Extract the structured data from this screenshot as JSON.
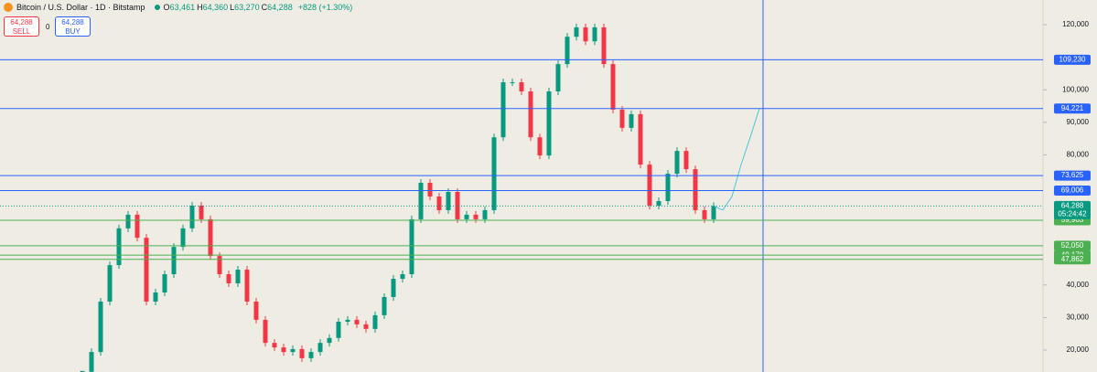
{
  "chart_data": {
    "type": "candlestick",
    "title": "Bitcoin / U.S. Dollar · 1D · Bitstamp",
    "ohlc": [
      {
        "label": "O",
        "value": "63,461"
      },
      {
        "label": "H",
        "value": "64,360"
      },
      {
        "label": "L",
        "value": "63,270"
      },
      {
        "label": "C",
        "value": "64,288"
      }
    ],
    "change": "+828 (+1.30%)",
    "sell": {
      "price": "64,288",
      "label": "SELL",
      "color": "#f23645"
    },
    "spread": "0",
    "buy": {
      "price": "64,288",
      "label": "BUY",
      "color": "#2962ff"
    },
    "up_color": "#089981",
    "down_color": "#f23645",
    "values": [
      13300,
      19400,
      34900,
      46100,
      57400,
      61600,
      54500,
      34900,
      37700,
      43300,
      51700,
      57400,
      64400,
      60200,
      48900,
      43300,
      40500,
      44700,
      34900,
      29300,
      22200,
      20800,
      19400,
      20300,
      17500,
      19400,
      22200,
      23700,
      28700,
      29300,
      27900,
      26500,
      30700,
      36300,
      41900,
      43300,
      60200,
      71400,
      67200,
      63000,
      68600,
      60200,
      61600,
      60200,
      63000,
      85400,
      102300,
      102300,
      99500,
      85400,
      79800,
      99500,
      107900,
      116300,
      119200,
      114900,
      119200,
      107900,
      93900,
      88300,
      92500,
      77000,
      64400,
      65800,
      74200,
      81200,
      75600,
      63000,
      60200,
      64288
    ],
    "projection": {
      "color": "#4fc3e0",
      "values": [
        64288,
        63000,
        67200,
        77000,
        85400,
        94221
      ]
    },
    "ylim": [
      13250,
      127600
    ],
    "yticks": [
      {
        "value": 20000,
        "label": "20,000"
      },
      {
        "value": 30000,
        "label": "30,000"
      },
      {
        "value": 40000,
        "label": "40,000"
      },
      {
        "value": 80000,
        "label": "80,000"
      },
      {
        "value": 90000,
        "label": "90,000"
      },
      {
        "value": 100000,
        "label": "100,000"
      },
      {
        "value": 120000,
        "label": "120,000"
      }
    ],
    "levels": [
      {
        "value": 109230,
        "label": "109,230",
        "color": "#2962ff"
      },
      {
        "value": 94221,
        "label": "94,221",
        "color": "#2962ff"
      },
      {
        "value": 73625,
        "label": "73,625",
        "color": "#2962ff"
      },
      {
        "value": 69006,
        "label": "69,006",
        "color": "#2962ff"
      },
      {
        "value": 59903,
        "label": "59,903",
        "color": "#4caf50"
      },
      {
        "value": 52050,
        "label": "52,050",
        "color": "#4caf50"
      },
      {
        "value": 49170,
        "label": "49,170",
        "color": "#4caf50"
      },
      {
        "value": 47862,
        "label": "47,862",
        "color": "#4caf50"
      }
    ],
    "last_price": {
      "value": 64288,
      "label": "64,288",
      "countdown": "05:24:42",
      "color": "#089981"
    }
  }
}
